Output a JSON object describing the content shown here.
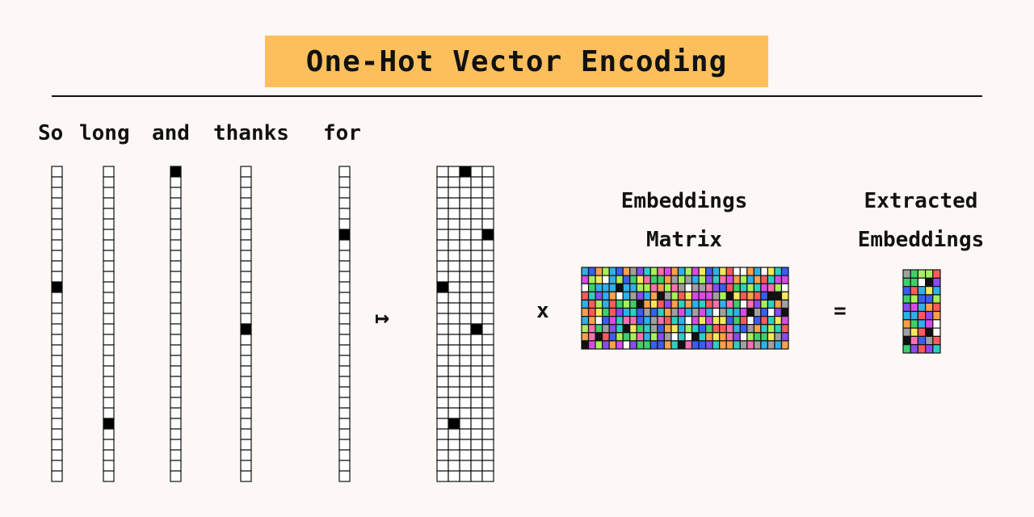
{
  "title": "One-Hot Vector Encoding",
  "words": [
    "So",
    "long",
    "and",
    "thanks",
    "for"
  ],
  "vocab_size": 30,
  "hot_indices": [
    11,
    24,
    0,
    15,
    6
  ],
  "embeddings_label_line1": "Embeddings",
  "embeddings_label_line2": "Matrix",
  "extracted_label_line1": "Extracted",
  "extracted_label_line2": "Embeddings",
  "maps_to_symbol": "↦",
  "times_symbol": "x",
  "equals_symbol": "=",
  "embedding_matrix": {
    "rows": 10,
    "cols": 30,
    "palette": [
      "#ff5a5a",
      "#ffa04a",
      "#f5e85a",
      "#a8f05a",
      "#3ecf6a",
      "#2ecfc2",
      "#2fb0e8",
      "#3a5ef0",
      "#8a4bf0",
      "#d84ae8",
      "#ff6fb0",
      "#111111",
      "#a0a0a0",
      "#ffffff"
    ]
  },
  "extracted_matrix": {
    "rows": 10,
    "cols": 5
  }
}
